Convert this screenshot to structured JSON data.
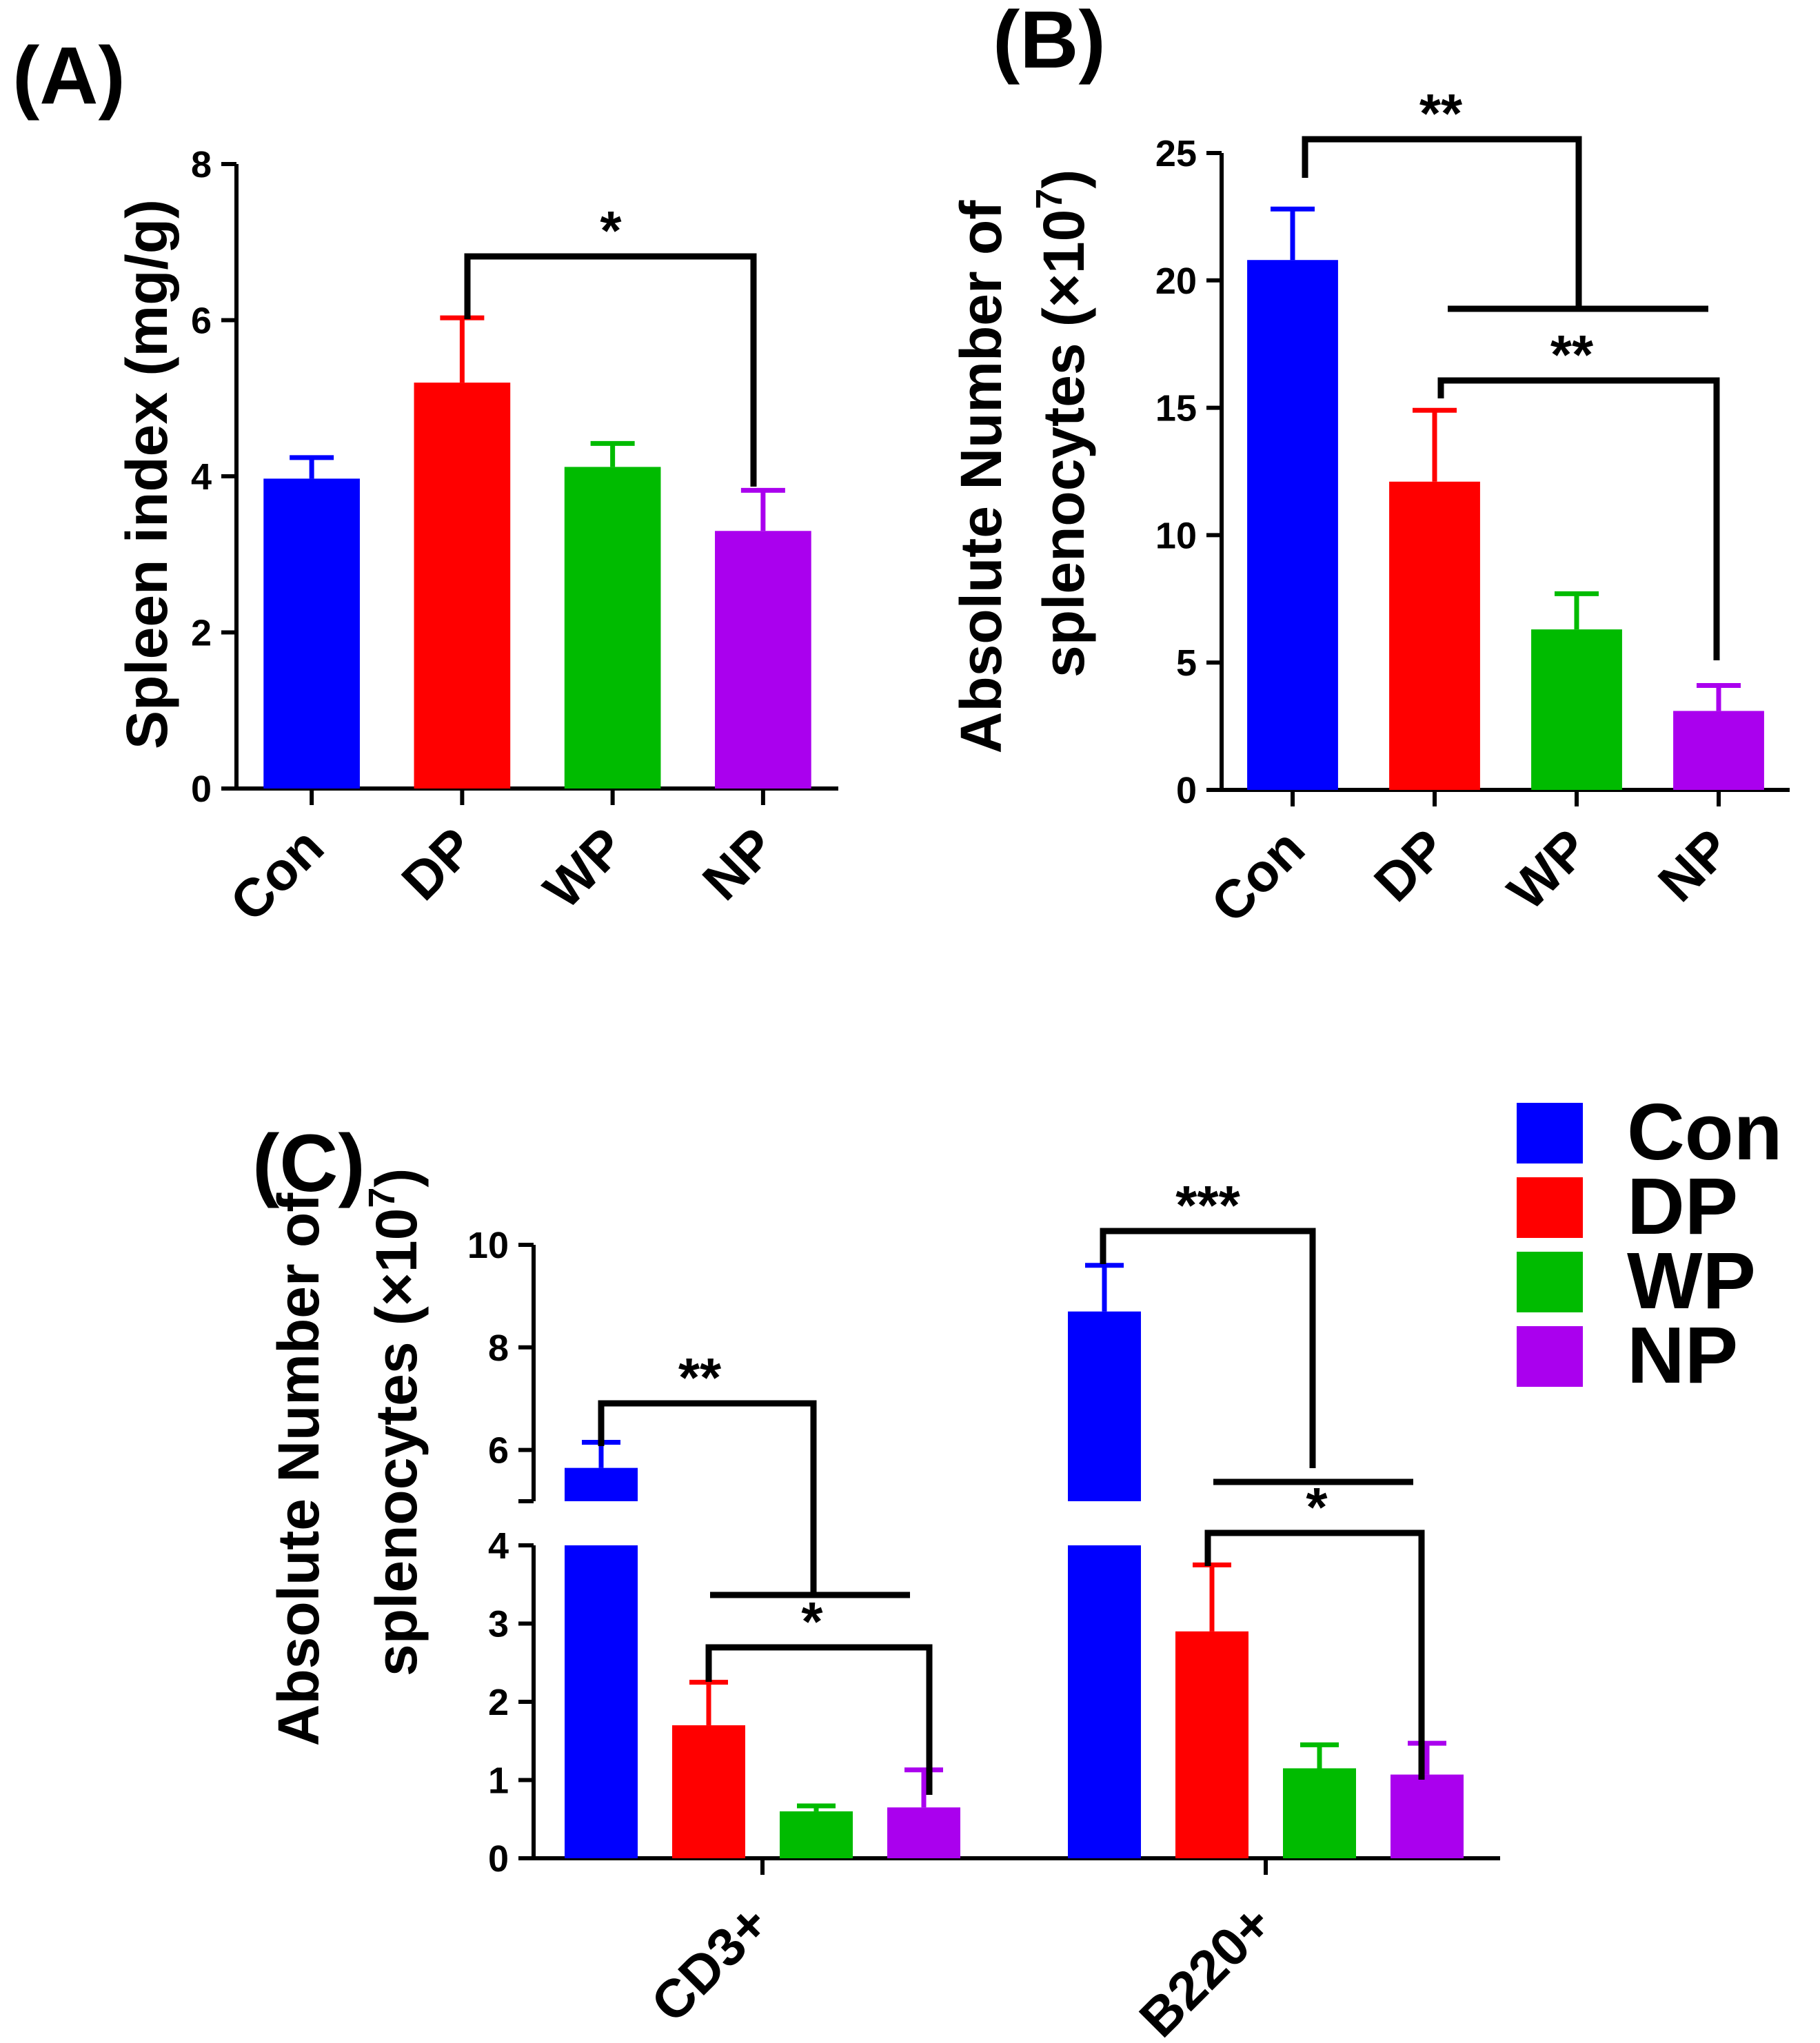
{
  "colors": {
    "Con": "#0000ff",
    "DP": "#ff0000",
    "WP": "#00bb00",
    "NP": "#aa00ee"
  },
  "chart_data": [
    {
      "panel": "(A)",
      "type": "bar",
      "ylabel": "Spleen index (mg/g)",
      "categories": [
        "Con",
        "DP",
        "WP",
        "NP"
      ],
      "values": [
        3.97,
        5.2,
        4.12,
        3.3
      ],
      "errors": [
        0.27,
        0.83,
        0.3,
        0.52
      ],
      "ylim": [
        0,
        8
      ],
      "yticks": [
        "0",
        "2",
        "4",
        "6",
        "8"
      ],
      "significance": [
        {
          "from": "DP",
          "to": "NP",
          "label": "*"
        }
      ]
    },
    {
      "panel": "(B)",
      "type": "bar",
      "ylabel_lines": [
        "Absolute Number of",
        "splenocytes (×10",
        "7",
        ")"
      ],
      "categories": [
        "Con",
        "DP",
        "WP",
        "NP"
      ],
      "values": [
        20.8,
        12.1,
        6.3,
        3.1
      ],
      "errors": [
        2.0,
        2.8,
        1.4,
        1.0
      ],
      "ylim": [
        0,
        25
      ],
      "yticks": [
        "0",
        "5",
        "10",
        "15",
        "20",
        "25"
      ],
      "significance": [
        {
          "from": "Con",
          "to": "DP-NP",
          "label": "**"
        },
        {
          "from": "DP",
          "to": "NP",
          "label": "**"
        }
      ]
    },
    {
      "panel": "(C)",
      "type": "bar",
      "ylabel_lines": [
        "Absolute Number of",
        "splenocytes (×10",
        "7",
        ")"
      ],
      "groups": [
        "CD3+",
        "B220+"
      ],
      "series": [
        {
          "name": "Con",
          "values": [
            5.65,
            8.7
          ],
          "errors": [
            0.5,
            0.9
          ]
        },
        {
          "name": "DP",
          "values": [
            1.7,
            2.9
          ],
          "errors": [
            0.55,
            0.85
          ]
        },
        {
          "name": "WP",
          "values": [
            0.6,
            1.15
          ],
          "errors": [
            0.07,
            0.3
          ]
        },
        {
          "name": "NP",
          "values": [
            0.65,
            1.07
          ],
          "errors": [
            0.48,
            0.4
          ]
        }
      ],
      "axis_break": [
        4,
        5
      ],
      "yticks": [
        "0",
        "1",
        "2",
        "3",
        "4",
        "6",
        "8",
        "10"
      ],
      "legend": [
        "Con",
        "DP",
        "WP",
        "NP"
      ],
      "significance": [
        {
          "group": "CD3+",
          "from": "Con",
          "to": "DP-NP",
          "label": "**"
        },
        {
          "group": "CD3+",
          "from": "DP",
          "to": "NP",
          "label": "*"
        },
        {
          "group": "B220+",
          "from": "Con",
          "to": "DP-NP",
          "label": "***"
        },
        {
          "group": "B220+",
          "from": "DP",
          "to": "NP",
          "label": "*"
        }
      ]
    }
  ]
}
